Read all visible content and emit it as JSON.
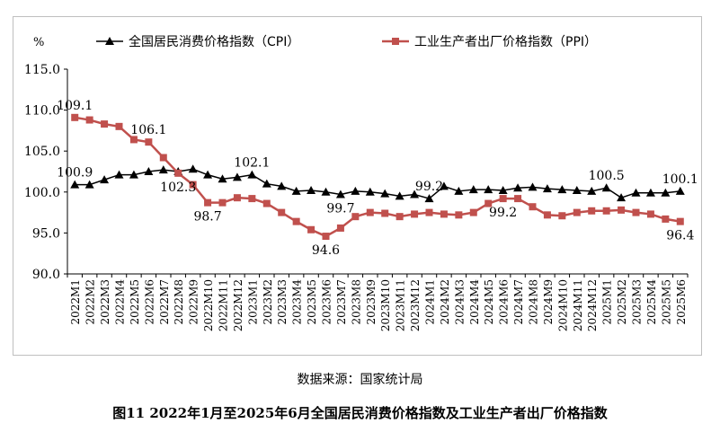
{
  "chart_data": {
    "type": "line",
    "unit": "%",
    "ylim": [
      90.0,
      115.0
    ],
    "yticks": [
      "90.0",
      "95.0",
      "100.0",
      "105.0",
      "110.0",
      "115.0"
    ],
    "grid": false,
    "legend_position": "top",
    "categories": [
      "2022M1",
      "2022M2",
      "2022M3",
      "2022M4",
      "2022M5",
      "2022M6",
      "2022M7",
      "2022M8",
      "2022M9",
      "2022M10",
      "2022M11",
      "2022M12",
      "2023M1",
      "2023M2",
      "2023M3",
      "2023M4",
      "2023M5",
      "2023M6",
      "2023M7",
      "2023M8",
      "2023M9",
      "2023M10",
      "2023M11",
      "2023M12",
      "2024M1",
      "2024M2",
      "2024M3",
      "2024M4",
      "2024M5",
      "2024M6",
      "2024M7",
      "2024M8",
      "2024M9",
      "2024M10",
      "2024M11",
      "2024M12",
      "2025M1",
      "2025M2",
      "2025M3",
      "2025M4",
      "2025M5",
      "2025M6"
    ],
    "series": [
      {
        "name": "全国居民消费价格指数（CPI）",
        "color": "#000000",
        "marker": "triangle",
        "values": [
          100.9,
          100.9,
          101.5,
          102.1,
          102.1,
          102.5,
          102.7,
          102.5,
          102.8,
          102.1,
          101.6,
          101.8,
          102.1,
          101.0,
          100.7,
          100.1,
          100.2,
          100.0,
          99.7,
          100.1,
          100.0,
          99.8,
          99.5,
          99.7,
          99.2,
          100.7,
          100.1,
          100.3,
          100.3,
          100.2,
          100.5,
          100.6,
          100.4,
          100.3,
          100.2,
          100.1,
          100.5,
          99.3,
          99.9,
          99.9,
          99.9,
          100.1
        ]
      },
      {
        "name": "工业生产者出厂价格指数（PPI）",
        "color": "#c0504d",
        "marker": "square",
        "values": [
          109.1,
          108.8,
          108.3,
          108.0,
          106.4,
          106.1,
          104.2,
          102.3,
          100.9,
          98.7,
          98.7,
          99.3,
          99.2,
          98.6,
          97.5,
          96.4,
          95.4,
          94.6,
          95.6,
          97.0,
          97.5,
          97.4,
          97.0,
          97.3,
          97.5,
          97.3,
          97.2,
          97.5,
          98.6,
          99.2,
          99.2,
          98.2,
          97.2,
          97.1,
          97.5,
          97.7,
          97.7,
          97.8,
          97.5,
          97.3,
          96.7,
          96.4
        ]
      }
    ],
    "data_labels": [
      {
        "series": 1,
        "index": 0,
        "text": "109.1",
        "pos": "above"
      },
      {
        "series": 0,
        "index": 0,
        "text": "100.9",
        "pos": "above"
      },
      {
        "series": 1,
        "index": 5,
        "text": "106.1",
        "pos": "above"
      },
      {
        "series": 1,
        "index": 7,
        "text": "102.3",
        "pos": "below"
      },
      {
        "series": 1,
        "index": 9,
        "text": "98.7",
        "pos": "below"
      },
      {
        "series": 0,
        "index": 12,
        "text": "102.1",
        "pos": "above"
      },
      {
        "series": 1,
        "index": 17,
        "text": "94.6",
        "pos": "below"
      },
      {
        "series": 0,
        "index": 18,
        "text": "99.7",
        "pos": "below"
      },
      {
        "series": 0,
        "index": 24,
        "text": "99.2",
        "pos": "above"
      },
      {
        "series": 1,
        "index": 29,
        "text": "99.2",
        "pos": "below"
      },
      {
        "series": 0,
        "index": 36,
        "text": "100.5",
        "pos": "above"
      },
      {
        "series": 0,
        "index": 41,
        "text": "100.1",
        "pos": "above"
      },
      {
        "series": 1,
        "index": 41,
        "text": "96.4",
        "pos": "below"
      }
    ]
  },
  "source_note": "数据来源：国家统计局",
  "figure_caption": "图11 2022年1月至2025年6月全国居民消费价格指数及工业生产者出厂价格指数"
}
